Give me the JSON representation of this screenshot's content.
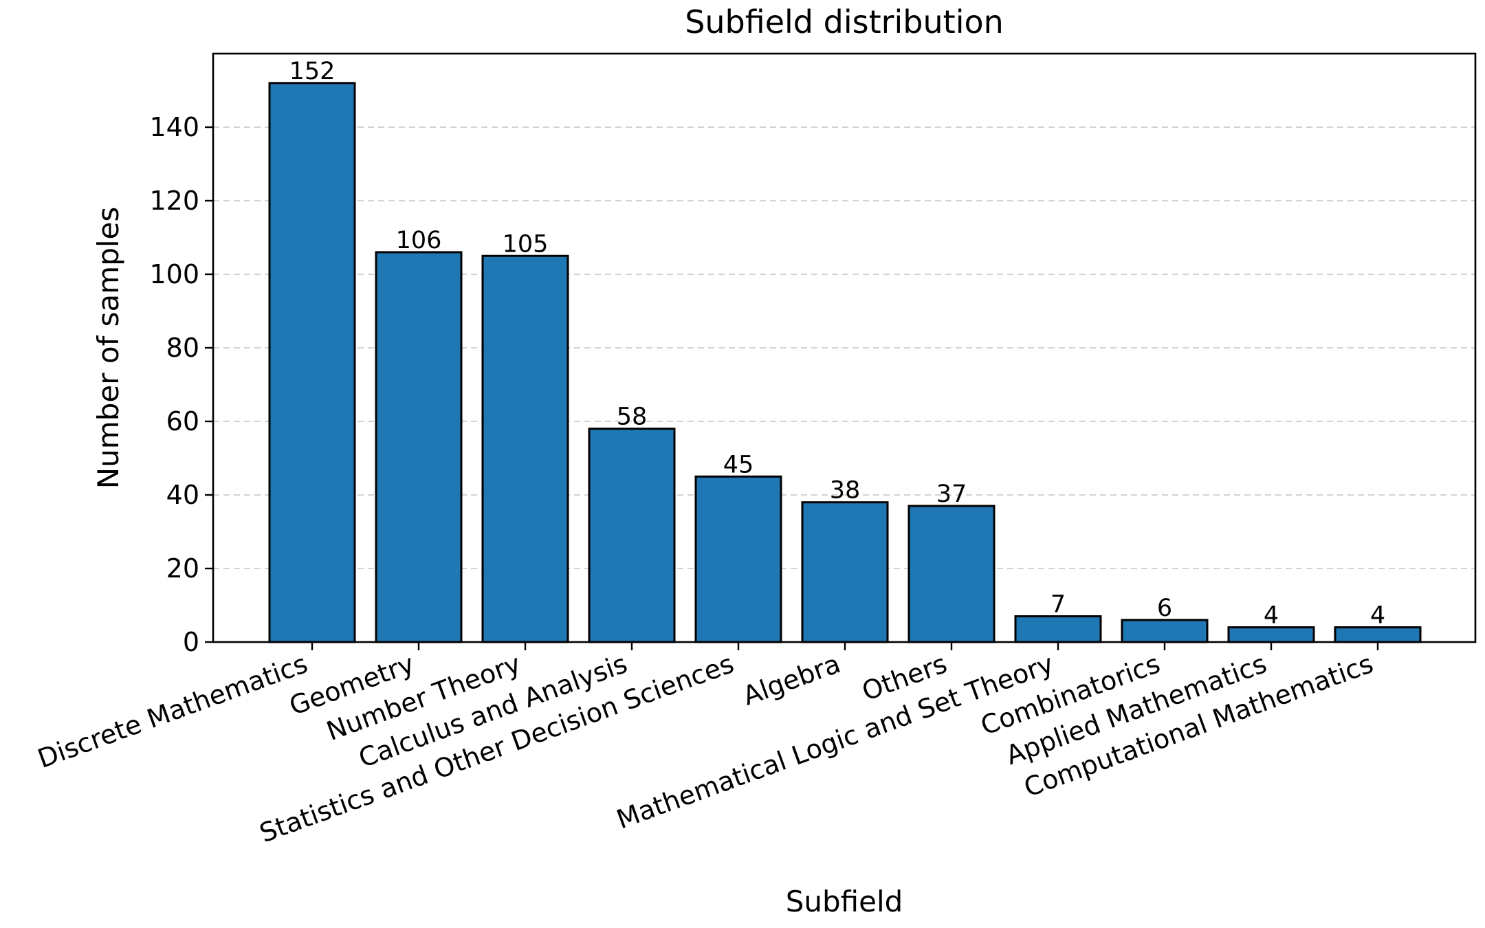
{
  "chart_data": {
    "type": "bar",
    "title": "Subfield distribution",
    "xlabel": "Subfield",
    "ylabel": "Number of samples",
    "categories": [
      "Discrete Mathematics",
      "Geometry",
      "Number Theory",
      "Calculus and Analysis",
      "Statistics and Other Decision Sciences",
      "Algebra",
      "Others",
      "Mathematical Logic and Set Theory",
      "Combinatorics",
      "Applied Mathematics",
      "Computational Mathematics"
    ],
    "values": [
      152,
      106,
      105,
      58,
      45,
      38,
      37,
      7,
      6,
      4,
      4
    ],
    "ylim": [
      0,
      160
    ],
    "yticks": [
      0,
      20,
      40,
      60,
      80,
      100,
      120,
      140
    ],
    "grid": "y, dashed",
    "legend": "none",
    "data_labels": true,
    "colors": {
      "bar_fill": "#1f77b4",
      "bar_edge": "#000000",
      "grid": "#b0b0b0"
    }
  }
}
